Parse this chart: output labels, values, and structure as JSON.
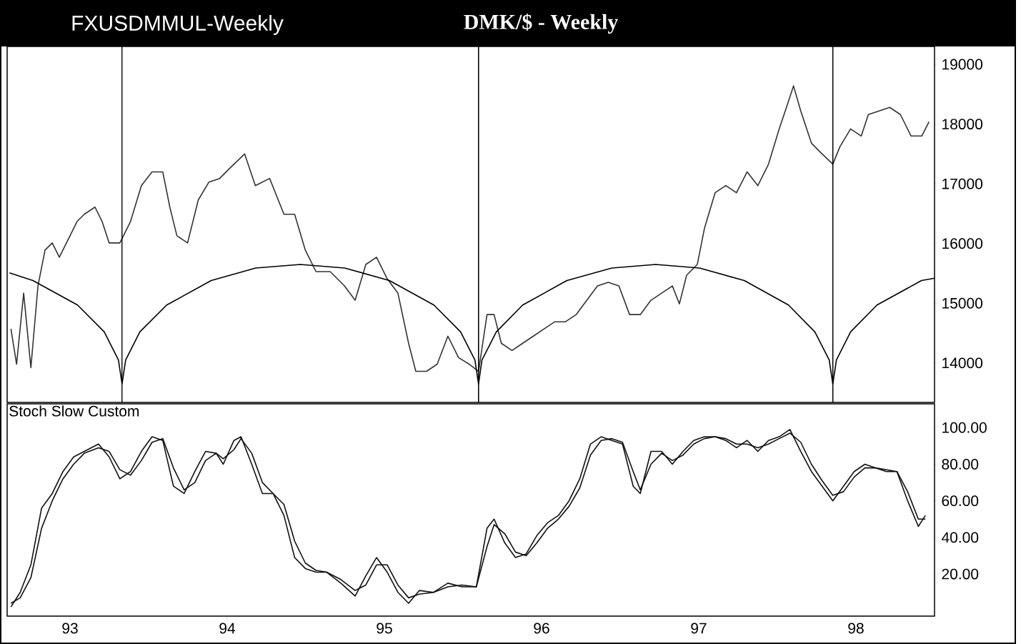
{
  "chart_data": [
    {
      "type": "line",
      "title": "DMK/$ - Weekly",
      "annotations": [
        "FXUSDMMUL-Weekly"
      ],
      "xlim": [
        1992.6,
        1998.5
      ],
      "ylim": [
        13340,
        19300
      ],
      "yticks": [
        14000,
        15000,
        16000,
        17000,
        18000,
        19000
      ],
      "tick_labels": "y",
      "series": [
        {
          "color": "#333333",
          "x": [
            1992.624,
            1992.66,
            1992.705,
            1992.751,
            1992.796,
            1992.841,
            1992.887,
            1992.932,
            1993.0,
            1993.045,
            1993.091,
            1993.159,
            1993.204,
            1993.249,
            1993.317,
            1993.385,
            1993.454,
            1993.522,
            1993.59,
            1993.635,
            1993.68,
            1993.748,
            1993.816,
            1993.884,
            1993.952,
            1994.02,
            1994.111,
            1994.179,
            1994.27,
            1994.361,
            1994.429,
            1994.497,
            1994.565,
            1994.655,
            1994.746,
            1994.814,
            1994.882,
            1994.95,
            1995.018,
            1995.086,
            1995.154,
            1995.2,
            1995.268,
            1995.336,
            1995.404,
            1995.472,
            1995.54,
            1995.599,
            1995.653,
            1995.698,
            1995.744,
            1995.812,
            1995.88,
            1995.948,
            1996.016,
            1996.084,
            1996.152,
            1996.22,
            1996.288,
            1996.356,
            1996.424,
            1996.492,
            1996.56,
            1996.628,
            1996.696,
            1996.764,
            1996.832,
            1996.877,
            1996.923,
            1996.991,
            1997.036,
            1997.104,
            1997.172,
            1997.24,
            1997.308,
            1997.376,
            1997.444,
            1997.512,
            1997.558,
            1997.603,
            1997.649,
            1997.717,
            1997.785,
            1997.853,
            1997.898,
            1997.966,
            1998.034,
            1998.079,
            1998.147,
            1998.215,
            1998.283,
            1998.351,
            1998.419,
            1998.465
          ],
          "values": [
            14570,
            13980,
            15170,
            13920,
            15290,
            15890,
            16010,
            15770,
            16130,
            16370,
            16490,
            16610,
            16370,
            16010,
            16010,
            16370,
            16970,
            17200,
            17200,
            16610,
            16130,
            16010,
            16730,
            17030,
            17090,
            17270,
            17500,
            16970,
            17090,
            16490,
            16490,
            15890,
            15530,
            15530,
            15290,
            15050,
            15650,
            15770,
            15410,
            15170,
            14330,
            13860,
            13860,
            13980,
            14450,
            14090,
            13980,
            13860,
            14810,
            14810,
            14330,
            14210,
            14330,
            14450,
            14570,
            14690,
            14690,
            14810,
            15050,
            15290,
            15350,
            15290,
            14810,
            14810,
            15050,
            15170,
            15290,
            14990,
            15470,
            15650,
            16250,
            16850,
            16970,
            16850,
            17200,
            16970,
            17330,
            17920,
            18280,
            18640,
            18220,
            17680,
            17500,
            17330,
            17620,
            17920,
            17800,
            18160,
            18220,
            18280,
            18160,
            17800,
            17800,
            18040
          ]
        },
        {
          "color": "#000000",
          "x": [
            1992.615,
            1992.764,
            1993.048,
            1993.218,
            1993.308,
            1993.331,
            1993.354,
            1993.444,
            1993.615,
            1993.898,
            1994.181,
            1994.465,
            1994.748,
            1995.032,
            1995.315,
            1995.485,
            1995.576,
            1995.599,
            1995.621,
            1995.712,
            1995.88,
            1996.161,
            1996.447,
            1996.726,
            1997.005,
            1997.29,
            1997.571,
            1997.739,
            1997.83,
            1997.853,
            1997.876,
            1997.966,
            1998.134,
            1998.417,
            1998.5
          ],
          "values": [
            15510,
            15380,
            14970,
            14520,
            14050,
            13650,
            14050,
            14520,
            14970,
            15380,
            15590,
            15650,
            15590,
            15380,
            14970,
            14520,
            14050,
            13650,
            14050,
            14520,
            14970,
            15380,
            15590,
            15650,
            15590,
            15380,
            14970,
            14520,
            14050,
            13650,
            14050,
            14520,
            14970,
            15380,
            15420
          ]
        }
      ],
      "ref_lines": [
        {
          "axis": "x",
          "value": 1993.331,
          "color": "#000000"
        },
        {
          "axis": "x",
          "value": 1995.599,
          "color": "#000000"
        },
        {
          "axis": "x",
          "value": 1997.853,
          "color": "#000000"
        }
      ]
    },
    {
      "type": "line",
      "title": "Stoch Slow Custom",
      "xlim": [
        1992.6,
        1998.5
      ],
      "ylim": [
        -3,
        113
      ],
      "xticks": [
        {
          "value": 1993,
          "label": "93"
        },
        {
          "value": 1994,
          "label": "94"
        },
        {
          "value": 1995,
          "label": "95"
        },
        {
          "value": 1996,
          "label": "96"
        },
        {
          "value": 1997,
          "label": "97"
        },
        {
          "value": 1998,
          "label": "98"
        }
      ],
      "yticks": [
        {
          "value": 20,
          "label": "20.00"
        },
        {
          "value": 40,
          "label": "40.00"
        },
        {
          "value": 60,
          "label": "60.00"
        },
        {
          "value": 80,
          "label": "80.00"
        },
        {
          "value": 100,
          "label": "100.00"
        }
      ],
      "series": [
        {
          "color": "#111111",
          "x": [
            1992.624,
            1992.683,
            1992.751,
            1992.819,
            1992.887,
            1992.955,
            1993.023,
            1993.091,
            1993.181,
            1993.249,
            1993.317,
            1993.385,
            1993.454,
            1993.522,
            1993.59,
            1993.658,
            1993.726,
            1993.794,
            1993.862,
            1993.93,
            1993.975,
            1994.043,
            1994.088,
            1994.156,
            1994.224,
            1994.292,
            1994.361,
            1994.429,
            1994.497,
            1994.565,
            1994.633,
            1994.723,
            1994.814,
            1994.882,
            1994.95,
            1995.018,
            1995.086,
            1995.154,
            1995.222,
            1995.313,
            1995.404,
            1995.494,
            1995.585,
            1995.653,
            1995.698,
            1995.766,
            1995.834,
            1995.902,
            1995.97,
            1996.038,
            1996.107,
            1996.175,
            1996.243,
            1996.311,
            1996.379,
            1996.447,
            1996.515,
            1996.583,
            1996.628,
            1996.696,
            1996.764,
            1996.832,
            1996.9,
            1996.968,
            1997.036,
            1997.104,
            1997.172,
            1997.24,
            1997.308,
            1997.376,
            1997.444,
            1997.512,
            1997.58,
            1997.649,
            1997.717,
            1997.785,
            1997.853,
            1997.921,
            1997.989,
            1998.057,
            1998.125,
            1998.193,
            1998.261,
            1998.329,
            1998.397,
            1998.442
          ],
          "values": [
            2,
            10,
            25,
            56,
            64,
            76,
            84,
            87,
            91,
            84,
            72,
            76,
            87,
            95,
            93,
            68,
            64,
            76,
            87,
            86,
            80,
            93,
            95,
            80,
            64,
            64,
            52,
            29,
            23,
            21,
            21,
            15,
            8,
            19,
            29,
            21,
            10,
            4,
            11,
            10,
            15,
            13,
            13,
            45,
            50,
            37,
            29,
            31,
            41,
            48,
            52,
            60,
            72,
            91,
            95,
            93,
            91,
            68,
            64,
            87,
            87,
            80,
            87,
            93,
            95,
            95,
            93,
            89,
            93,
            87,
            93,
            95,
            99,
            87,
            76,
            68,
            60,
            68,
            76,
            80,
            78,
            76,
            76,
            60,
            46,
            52
          ]
        },
        {
          "color": "#111111",
          "x": [
            1992.624,
            1992.683,
            1992.751,
            1992.819,
            1992.887,
            1992.955,
            1993.023,
            1993.091,
            1993.181,
            1993.249,
            1993.317,
            1993.385,
            1993.454,
            1993.522,
            1993.59,
            1993.658,
            1993.726,
            1993.794,
            1993.862,
            1993.93,
            1993.975,
            1994.043,
            1994.088,
            1994.156,
            1994.224,
            1994.292,
            1994.361,
            1994.429,
            1994.497,
            1994.565,
            1994.633,
            1994.723,
            1994.814,
            1994.882,
            1994.95,
            1995.018,
            1995.086,
            1995.154,
            1995.222,
            1995.313,
            1995.404,
            1995.494,
            1995.585,
            1995.653,
            1995.698,
            1995.766,
            1995.834,
            1995.902,
            1995.97,
            1996.038,
            1996.107,
            1996.175,
            1996.243,
            1996.311,
            1996.379,
            1996.447,
            1996.515,
            1996.583,
            1996.628,
            1996.696,
            1996.764,
            1996.832,
            1996.9,
            1996.968,
            1997.036,
            1997.104,
            1997.172,
            1997.24,
            1997.308,
            1997.376,
            1997.444,
            1997.512,
            1997.58,
            1997.649,
            1997.717,
            1997.785,
            1997.853,
            1997.921,
            1997.989,
            1998.057,
            1998.125,
            1998.193,
            1998.261,
            1998.329,
            1998.397,
            1998.442
          ],
          "values": [
            4,
            7,
            18,
            45,
            60,
            72,
            80,
            86,
            89,
            87,
            77,
            74,
            82,
            92,
            94,
            78,
            66,
            70,
            82,
            86,
            83,
            88,
            94,
            86,
            70,
            64,
            58,
            38,
            26,
            22,
            21,
            17,
            11,
            14,
            25,
            25,
            14,
            7,
            9,
            10,
            13,
            14,
            13,
            35,
            47,
            42,
            32,
            30,
            37,
            45,
            50,
            57,
            67,
            85,
            93,
            94,
            92,
            76,
            66,
            80,
            86,
            82,
            85,
            91,
            94,
            95,
            94,
            91,
            91,
            89,
            91,
            94,
            97,
            92,
            80,
            71,
            63,
            65,
            73,
            78,
            78,
            77,
            76,
            65,
            50,
            50
          ]
        }
      ]
    }
  ]
}
